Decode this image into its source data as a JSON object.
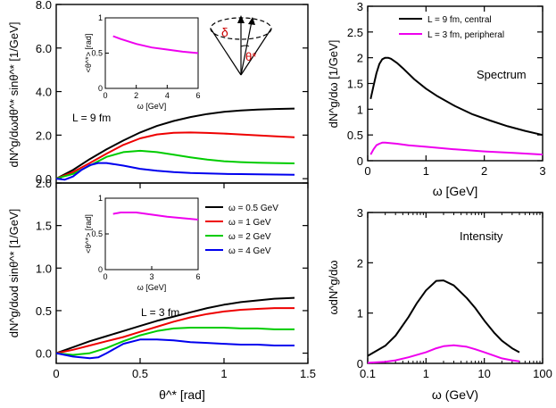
{
  "chart_data": [
    {
      "id": "tl",
      "type": "line",
      "ylabel": "dN^g/dωdθ^* sinθ^* [1/GeV]",
      "xlabel": "",
      "xlim": [
        0,
        1.5
      ],
      "ylim": [
        -0.2,
        8.0
      ],
      "yticks": [
        0.0,
        2.0,
        4.0,
        6.0,
        8.0
      ],
      "ytick_labels": [
        "0.0",
        "2.0",
        "4.0",
        "6.0",
        "8.0"
      ],
      "annotation": "L = 9 fm",
      "series": [
        {
          "name": "ω = 0.5 GeV",
          "color": "#000000",
          "x": [
            0,
            0.1,
            0.2,
            0.3,
            0.4,
            0.5,
            0.6,
            0.7,
            0.8,
            0.9,
            1.0,
            1.1,
            1.2,
            1.3,
            1.42
          ],
          "y": [
            0,
            0.4,
            0.9,
            1.35,
            1.75,
            2.12,
            2.42,
            2.65,
            2.83,
            2.97,
            3.07,
            3.13,
            3.17,
            3.2,
            3.22
          ]
        },
        {
          "name": "ω = 1 GeV",
          "color": "#ee0000",
          "x": [
            0,
            0.1,
            0.2,
            0.3,
            0.4,
            0.5,
            0.6,
            0.7,
            0.8,
            0.9,
            1.0,
            1.1,
            1.2,
            1.3,
            1.42
          ],
          "y": [
            0,
            0.3,
            0.72,
            1.15,
            1.55,
            1.85,
            2.03,
            2.11,
            2.12,
            2.1,
            2.07,
            2.03,
            1.99,
            1.95,
            1.9
          ]
        },
        {
          "name": "ω = 2 GeV",
          "color": "#00cc00",
          "x": [
            0,
            0.1,
            0.2,
            0.3,
            0.4,
            0.5,
            0.6,
            0.7,
            0.8,
            0.9,
            1.0,
            1.1,
            1.2,
            1.3,
            1.42
          ],
          "y": [
            0,
            0.22,
            0.6,
            1.0,
            1.22,
            1.28,
            1.22,
            1.1,
            0.98,
            0.88,
            0.8,
            0.76,
            0.73,
            0.72,
            0.7
          ]
        },
        {
          "name": "ω = 4 GeV",
          "color": "#0000ee",
          "x": [
            0,
            0.05,
            0.1,
            0.15,
            0.2,
            0.25,
            0.3,
            0.4,
            0.5,
            0.6,
            0.7,
            0.8,
            0.9,
            1.0,
            1.1,
            1.2,
            1.42
          ],
          "y": [
            0,
            -0.05,
            0.1,
            0.4,
            0.62,
            0.72,
            0.72,
            0.6,
            0.45,
            0.36,
            0.3,
            0.26,
            0.24,
            0.22,
            0.21,
            0.2,
            0.18
          ]
        }
      ],
      "inset": {
        "xlabel": "ω [GeV]",
        "ylabel": "<θ^*> [rad]",
        "xlim": [
          0,
          6
        ],
        "ylim": [
          0,
          1
        ],
        "xticks": [
          0,
          2,
          4,
          6
        ],
        "xtick_labels": [
          "0",
          "2",
          "4",
          "6"
        ],
        "yticks": [
          0,
          0.5,
          1
        ],
        "ytick_labels": [
          "0",
          "0.5",
          "1"
        ],
        "color": "#ee00ee",
        "x": [
          0.5,
          1,
          2,
          3,
          4,
          5,
          6
        ],
        "y": [
          0.74,
          0.7,
          0.63,
          0.58,
          0.55,
          0.52,
          0.5
        ]
      },
      "diagram_labels": [
        "δ",
        "θ*"
      ]
    },
    {
      "id": "bl",
      "type": "line",
      "ylabel": "dN^g/dωd sinθ^* [1/GeV]",
      "xlabel": "θ^* [rad]",
      "xlim": [
        0,
        1.5
      ],
      "ylim": [
        -0.12,
        2.0
      ],
      "xticks": [
        0,
        0.5,
        1,
        1.5
      ],
      "xtick_labels": [
        "0",
        "0.5",
        "1",
        "1.5"
      ],
      "yticks": [
        0.0,
        0.5,
        1.0,
        1.5,
        2.0
      ],
      "ytick_labels": [
        "0.0",
        "0.5",
        "1.0",
        "1.5",
        "2.0"
      ],
      "annotation": "L = 3 fm",
      "legend": [
        "ω = 0.5 GeV",
        "ω = 1 GeV",
        "ω = 2 GeV",
        "ω = 4 GeV"
      ],
      "series": [
        {
          "name": "ω = 0.5 GeV",
          "color": "#000000",
          "x": [
            0,
            0.1,
            0.2,
            0.3,
            0.4,
            0.5,
            0.6,
            0.7,
            0.8,
            0.9,
            1.0,
            1.1,
            1.2,
            1.3,
            1.42
          ],
          "y": [
            0,
            0.07,
            0.14,
            0.2,
            0.26,
            0.32,
            0.38,
            0.43,
            0.48,
            0.53,
            0.57,
            0.6,
            0.62,
            0.64,
            0.65
          ]
        },
        {
          "name": "ω = 1 GeV",
          "color": "#ee0000",
          "x": [
            0,
            0.1,
            0.2,
            0.3,
            0.4,
            0.5,
            0.6,
            0.7,
            0.8,
            0.9,
            1.0,
            1.1,
            1.2,
            1.3,
            1.42
          ],
          "y": [
            0,
            0.04,
            0.09,
            0.14,
            0.19,
            0.25,
            0.31,
            0.37,
            0.42,
            0.46,
            0.49,
            0.51,
            0.52,
            0.53,
            0.53
          ]
        },
        {
          "name": "ω = 2 GeV",
          "color": "#00cc00",
          "x": [
            0,
            0.1,
            0.2,
            0.3,
            0.4,
            0.5,
            0.6,
            0.7,
            0.8,
            0.9,
            1.0,
            1.1,
            1.2,
            1.3,
            1.42
          ],
          "y": [
            0,
            -0.02,
            0.0,
            0.06,
            0.14,
            0.21,
            0.26,
            0.29,
            0.3,
            0.3,
            0.3,
            0.29,
            0.29,
            0.28,
            0.28
          ]
        },
        {
          "name": "ω = 4 GeV",
          "color": "#0000ee",
          "x": [
            0,
            0.1,
            0.2,
            0.25,
            0.3,
            0.4,
            0.5,
            0.6,
            0.7,
            0.8,
            0.9,
            1.0,
            1.1,
            1.2,
            1.3,
            1.42
          ],
          "y": [
            0,
            -0.04,
            -0.06,
            -0.05,
            0.0,
            0.11,
            0.16,
            0.16,
            0.15,
            0.13,
            0.12,
            0.11,
            0.1,
            0.1,
            0.09,
            0.09
          ]
        }
      ],
      "inset": {
        "xlabel": "ω [GeV]",
        "ylabel": "<θ^*> [rad]",
        "xlim": [
          0,
          6
        ],
        "ylim": [
          0,
          1
        ],
        "xticks": [
          0,
          3,
          6
        ],
        "xtick_labels": [
          "0",
          "3",
          "6"
        ],
        "yticks": [
          0,
          0.5,
          1
        ],
        "ytick_labels": [
          "0",
          "0.5",
          "1"
        ],
        "color": "#ee00ee",
        "x": [
          0.5,
          1,
          2,
          3,
          4,
          5,
          6
        ],
        "y": [
          0.78,
          0.8,
          0.8,
          0.77,
          0.74,
          0.72,
          0.7
        ]
      }
    },
    {
      "id": "tr",
      "type": "line",
      "ylabel": "dN^g/dω [1/GeV]",
      "xlabel": "ω [GeV]",
      "xlim": [
        0,
        3
      ],
      "ylim": [
        0,
        3
      ],
      "xticks": [
        0,
        1,
        2,
        3
      ],
      "xtick_labels": [
        "0",
        "1",
        "2",
        "3"
      ],
      "yticks": [
        0,
        0.5,
        1,
        1.5,
        2,
        2.5,
        3
      ],
      "ytick_labels": [
        "0",
        "0.5",
        "1",
        "1.5",
        "2",
        "2.5",
        "3"
      ],
      "annotation": "Spectrum",
      "legend": [
        "L = 9 fm, central",
        "L = 3 fm, peripheral"
      ],
      "series": [
        {
          "name": "L = 9 fm, central",
          "color": "#000000",
          "x": [
            0.05,
            0.1,
            0.15,
            0.2,
            0.25,
            0.3,
            0.35,
            0.4,
            0.5,
            0.6,
            0.8,
            1.0,
            1.2,
            1.5,
            1.8,
            2.1,
            2.4,
            2.7,
            3.0
          ],
          "y": [
            1.2,
            1.45,
            1.7,
            1.88,
            1.97,
            2.0,
            2.0,
            1.98,
            1.9,
            1.8,
            1.58,
            1.4,
            1.25,
            1.06,
            0.9,
            0.78,
            0.67,
            0.58,
            0.5
          ]
        },
        {
          "name": "L = 3 fm, peripheral",
          "color": "#ee00ee",
          "x": [
            0.05,
            0.1,
            0.15,
            0.2,
            0.25,
            0.3,
            0.4,
            0.5,
            0.7,
            1.0,
            1.5,
            2.0,
            2.5,
            3.0
          ],
          "y": [
            0.12,
            0.22,
            0.3,
            0.33,
            0.35,
            0.35,
            0.34,
            0.33,
            0.3,
            0.27,
            0.22,
            0.18,
            0.15,
            0.12
          ]
        }
      ]
    },
    {
      "id": "br",
      "type": "line",
      "ylabel": "ωdN^g/dω",
      "xlabel": "ω (GeV)",
      "xscale": "log",
      "xlim": [
        0.1,
        100
      ],
      "ylim": [
        0,
        3
      ],
      "xticks": [
        0.1,
        1,
        10,
        100
      ],
      "xtick_labels": [
        "0.1",
        "1",
        "10",
        "100"
      ],
      "yticks": [
        0,
        1,
        2,
        3
      ],
      "ytick_labels": [
        "0",
        "1",
        "2",
        "3"
      ],
      "annotation": "Intensity",
      "series": [
        {
          "name": "L = 9 fm, central",
          "color": "#000000",
          "x": [
            0.1,
            0.2,
            0.3,
            0.5,
            0.7,
            1.0,
            1.5,
            2.0,
            3.0,
            5.0,
            7.0,
            10,
            15,
            20,
            30,
            40
          ],
          "y": [
            0.15,
            0.35,
            0.55,
            0.92,
            1.2,
            1.45,
            1.64,
            1.65,
            1.55,
            1.3,
            1.1,
            0.85,
            0.6,
            0.45,
            0.3,
            0.22
          ]
        },
        {
          "name": "L = 3 fm, peripheral",
          "color": "#ee00ee",
          "x": [
            0.1,
            0.2,
            0.3,
            0.5,
            1.0,
            1.5,
            2.0,
            3.0,
            5.0,
            7.0,
            10,
            15,
            20,
            30,
            40
          ],
          "y": [
            0.01,
            0.03,
            0.06,
            0.12,
            0.22,
            0.3,
            0.34,
            0.36,
            0.33,
            0.28,
            0.22,
            0.15,
            0.1,
            0.06,
            0.04
          ]
        }
      ]
    }
  ]
}
